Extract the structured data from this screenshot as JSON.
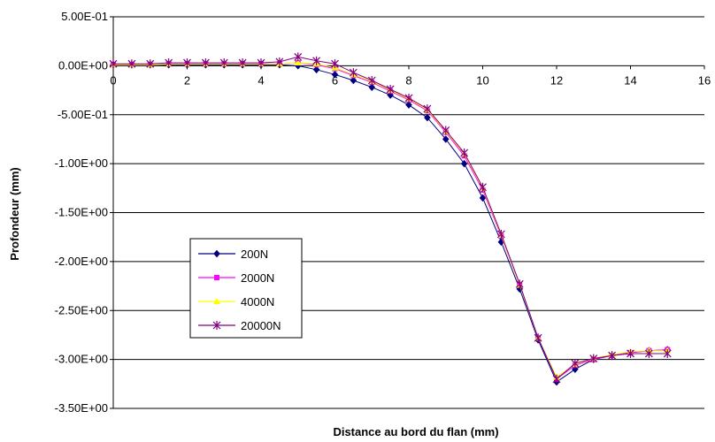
{
  "chart_data": {
    "type": "line",
    "title": "",
    "xlabel": "Distance au bord du flan (mm)",
    "ylabel": "Profondeur (mm)",
    "xlim": [
      0,
      16
    ],
    "ylim": [
      -3.5,
      0.5
    ],
    "x_ticks": [
      0,
      2,
      4,
      6,
      8,
      10,
      12,
      14,
      16
    ],
    "x_tick_labels": [
      "0",
      "2",
      "4",
      "6",
      "8",
      "10",
      "12",
      "14",
      "16"
    ],
    "y_ticks": [
      0.5,
      0,
      -0.5,
      -1,
      -1.5,
      -2,
      -2.5,
      -3,
      -3.5
    ],
    "y_tick_labels": [
      "5.00E-01",
      "0.00E+00",
      "-5.00E-01",
      "-1.00E+00",
      "-1.50E+00",
      "-2.00E+00",
      "-2.50E+00",
      "-3.00E+00",
      "-3.50E+00"
    ],
    "grid": "horizontal",
    "legend_position": "center-left",
    "x": [
      0,
      0.5,
      1,
      1.5,
      2,
      2.5,
      3,
      3.5,
      4,
      4.5,
      5,
      5.5,
      6,
      6.5,
      7,
      7.5,
      8,
      8.5,
      9,
      9.5,
      10,
      10.5,
      11,
      11.5,
      12,
      12.5,
      13,
      13.5,
      14,
      14.5,
      15
    ],
    "series": [
      {
        "name": "200N",
        "color": "#000080",
        "marker": "diamond",
        "values": [
          0.01,
          0.01,
          0.01,
          0.01,
          0.01,
          0.01,
          0.01,
          0.01,
          0.01,
          0.01,
          0.0,
          -0.04,
          -0.09,
          -0.15,
          -0.22,
          -0.3,
          -0.4,
          -0.53,
          -0.75,
          -1.0,
          -1.35,
          -1.8,
          -2.28,
          -2.8,
          -3.23,
          -3.1,
          -3.0,
          -2.96,
          -2.93,
          -2.91,
          -2.9
        ]
      },
      {
        "name": "2000N",
        "color": "#FF00FF",
        "marker": "square",
        "values": [
          0.01,
          0.01,
          0.01,
          0.02,
          0.02,
          0.02,
          0.02,
          0.02,
          0.02,
          0.02,
          0.03,
          0.01,
          -0.03,
          -0.1,
          -0.17,
          -0.26,
          -0.35,
          -0.46,
          -0.68,
          -0.92,
          -1.27,
          -1.74,
          -2.24,
          -2.78,
          -3.2,
          -3.06,
          -3.0,
          -2.96,
          -2.93,
          -2.91,
          -2.9
        ]
      },
      {
        "name": "4000N",
        "color": "#FFFF00",
        "marker": "triangle",
        "values": [
          0.01,
          0.01,
          0.01,
          0.02,
          0.02,
          0.02,
          0.02,
          0.02,
          0.02,
          0.02,
          0.03,
          0.02,
          -0.02,
          -0.09,
          -0.16,
          -0.25,
          -0.34,
          -0.45,
          -0.67,
          -0.9,
          -1.25,
          -1.73,
          -2.24,
          -2.78,
          -3.18,
          -3.05,
          -2.99,
          -2.95,
          -2.92,
          -2.91,
          -2.91
        ]
      },
      {
        "name": "20000N",
        "color": "#800080",
        "marker": "star",
        "values": [
          0.02,
          0.02,
          0.02,
          0.03,
          0.03,
          0.03,
          0.03,
          0.03,
          0.03,
          0.04,
          0.09,
          0.05,
          0.02,
          -0.07,
          -0.15,
          -0.24,
          -0.33,
          -0.44,
          -0.66,
          -0.89,
          -1.24,
          -1.72,
          -2.23,
          -2.78,
          -3.2,
          -3.04,
          -2.99,
          -2.96,
          -2.94,
          -2.94,
          -2.94
        ]
      }
    ]
  }
}
